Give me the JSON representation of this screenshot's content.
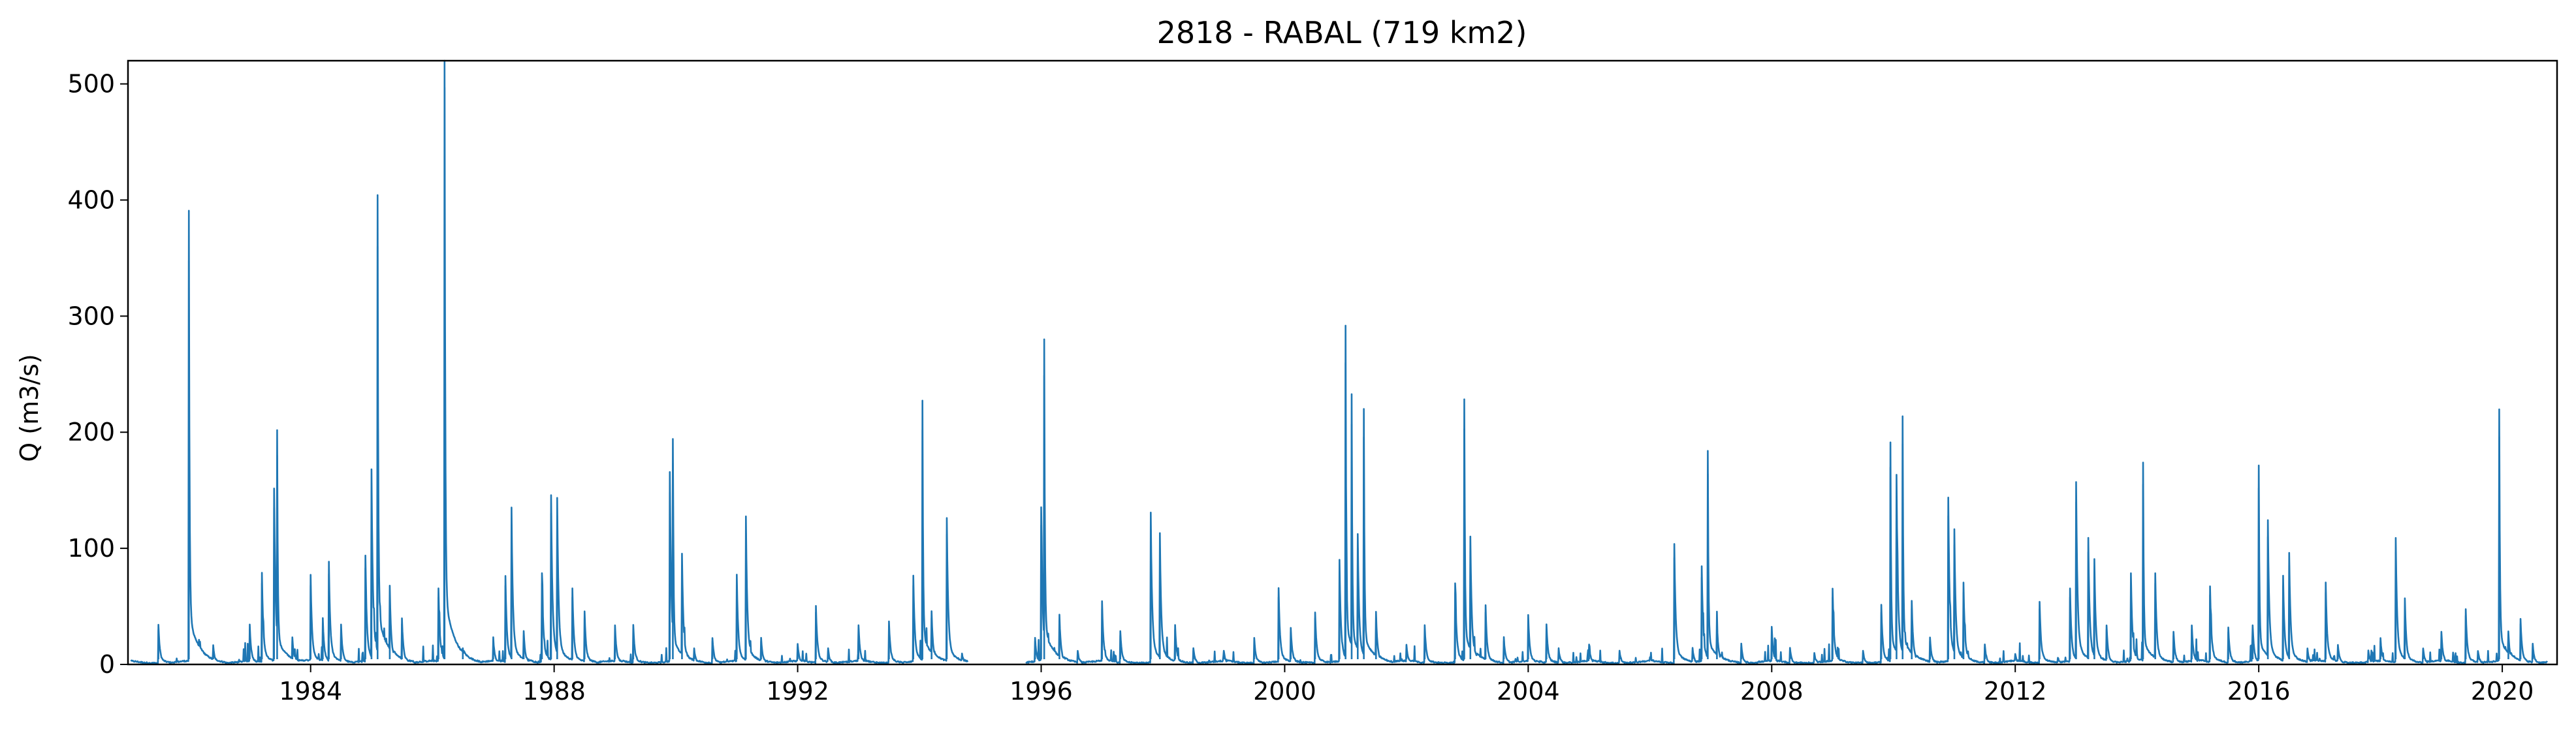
{
  "chart_data": {
    "type": "line",
    "title": "2818 - RABAL (719 km2)",
    "xlabel": "",
    "ylabel": "Q (m3/s)",
    "xlim": [
      1981.0,
      2020.9
    ],
    "ylim": [
      0,
      520
    ],
    "x_ticks": [
      1984,
      1988,
      1992,
      1996,
      2000,
      2004,
      2008,
      2012,
      2016,
      2020
    ],
    "x_tick_labels": [
      "1984",
      "1988",
      "1992",
      "1996",
      "2000",
      "2004",
      "2008",
      "2012",
      "2016",
      "2020"
    ],
    "y_ticks": [
      0,
      100,
      200,
      300,
      400,
      500
    ],
    "y_tick_labels": [
      "0",
      "100",
      "200",
      "300",
      "400",
      "500"
    ],
    "grid": false,
    "legend": "none",
    "gaps": [
      [
        1994.8,
        1995.75
      ]
    ],
    "series": [
      {
        "color": "#1f77b4",
        "peaks": [
          [
            1981.5,
            30
          ],
          [
            1982.0,
            348
          ],
          [
            1982.4,
            14
          ],
          [
            1983.0,
            30
          ],
          [
            1983.2,
            70
          ],
          [
            1983.4,
            135
          ],
          [
            1983.45,
            180
          ],
          [
            1983.7,
            20
          ],
          [
            1984.0,
            68
          ],
          [
            1984.2,
            35
          ],
          [
            1984.3,
            78
          ],
          [
            1984.5,
            30
          ],
          [
            1984.9,
            83
          ],
          [
            1985.0,
            150
          ],
          [
            1985.1,
            360
          ],
          [
            1985.3,
            60
          ],
          [
            1985.5,
            35
          ],
          [
            1986.1,
            58
          ],
          [
            1986.2,
            497
          ],
          [
            1986.5,
            12
          ],
          [
            1987.0,
            20
          ],
          [
            1987.2,
            68
          ],
          [
            1987.3,
            120
          ],
          [
            1987.5,
            25
          ],
          [
            1987.8,
            70
          ],
          [
            1987.95,
            130
          ],
          [
            1988.05,
            128
          ],
          [
            1988.3,
            58
          ],
          [
            1988.5,
            40
          ],
          [
            1989.0,
            30
          ],
          [
            1989.3,
            30
          ],
          [
            1989.9,
            148
          ],
          [
            1989.95,
            173
          ],
          [
            1990.1,
            85
          ],
          [
            1990.3,
            12
          ],
          [
            1990.6,
            20
          ],
          [
            1991.0,
            68
          ],
          [
            1991.15,
            113
          ],
          [
            1991.4,
            20
          ],
          [
            1992.0,
            15
          ],
          [
            1992.3,
            45
          ],
          [
            1992.5,
            12
          ],
          [
            1993.0,
            30
          ],
          [
            1993.5,
            33
          ],
          [
            1993.9,
            68
          ],
          [
            1994.05,
            202
          ],
          [
            1994.2,
            40
          ],
          [
            1994.45,
            112
          ],
          [
            1994.7,
            8
          ],
          [
            1995.9,
            20
          ],
          [
            1996.0,
            120
          ],
          [
            1996.05,
            249
          ],
          [
            1996.3,
            38
          ],
          [
            1996.6,
            10
          ],
          [
            1997.0,
            48
          ],
          [
            1997.3,
            25
          ],
          [
            1997.8,
            116
          ],
          [
            1997.95,
            100
          ],
          [
            1998.2,
            30
          ],
          [
            1998.5,
            12
          ],
          [
            1999.0,
            10
          ],
          [
            1999.5,
            20
          ],
          [
            1999.9,
            58
          ],
          [
            2000.1,
            28
          ],
          [
            2000.5,
            40
          ],
          [
            2000.9,
            80
          ],
          [
            2001.0,
            260
          ],
          [
            2001.1,
            207
          ],
          [
            2001.2,
            100
          ],
          [
            2001.3,
            196
          ],
          [
            2001.5,
            40
          ],
          [
            2002.0,
            15
          ],
          [
            2002.3,
            30
          ],
          [
            2002.8,
            62
          ],
          [
            2002.95,
            203
          ],
          [
            2003.05,
            98
          ],
          [
            2003.3,
            45
          ],
          [
            2003.6,
            20
          ],
          [
            2004.0,
            38
          ],
          [
            2004.3,
            30
          ],
          [
            2004.5,
            12
          ],
          [
            2005.0,
            15
          ],
          [
            2005.5,
            10
          ],
          [
            2006.0,
            5
          ],
          [
            2006.4,
            92
          ],
          [
            2006.7,
            12
          ],
          [
            2006.85,
            75
          ],
          [
            2006.95,
            164
          ],
          [
            2007.1,
            33
          ],
          [
            2007.5,
            15
          ],
          [
            2008.0,
            28
          ],
          [
            2008.3,
            12
          ],
          [
            2008.7,
            8
          ],
          [
            2009.0,
            58
          ],
          [
            2009.5,
            10
          ],
          [
            2009.8,
            45
          ],
          [
            2009.95,
            170
          ],
          [
            2010.05,
            145
          ],
          [
            2010.15,
            190
          ],
          [
            2010.3,
            48
          ],
          [
            2010.6,
            20
          ],
          [
            2010.9,
            128
          ],
          [
            2011.0,
            103
          ],
          [
            2011.15,
            62
          ],
          [
            2011.5,
            15
          ],
          [
            2012.0,
            8
          ],
          [
            2012.4,
            48
          ],
          [
            2012.7,
            5
          ],
          [
            2012.9,
            58
          ],
          [
            2013.0,
            140
          ],
          [
            2013.2,
            97
          ],
          [
            2013.3,
            80
          ],
          [
            2013.5,
            30
          ],
          [
            2013.9,
            70
          ],
          [
            2014.1,
            155
          ],
          [
            2014.3,
            70
          ],
          [
            2014.6,
            25
          ],
          [
            2014.9,
            30
          ],
          [
            2015.2,
            60
          ],
          [
            2015.5,
            28
          ],
          [
            2015.9,
            30
          ],
          [
            2016.0,
            152
          ],
          [
            2016.15,
            110
          ],
          [
            2016.4,
            68
          ],
          [
            2016.5,
            85
          ],
          [
            2016.8,
            12
          ],
          [
            2017.1,
            62
          ],
          [
            2017.3,
            15
          ],
          [
            2017.8,
            10
          ],
          [
            2018.0,
            20
          ],
          [
            2018.25,
            97
          ],
          [
            2018.4,
            50
          ],
          [
            2018.7,
            12
          ],
          [
            2019.0,
            25
          ],
          [
            2019.4,
            42
          ],
          [
            2019.6,
            10
          ],
          [
            2019.95,
            196
          ],
          [
            2020.1,
            25
          ],
          [
            2020.3,
            35
          ],
          [
            2020.5,
            15
          ]
        ]
      }
    ]
  }
}
